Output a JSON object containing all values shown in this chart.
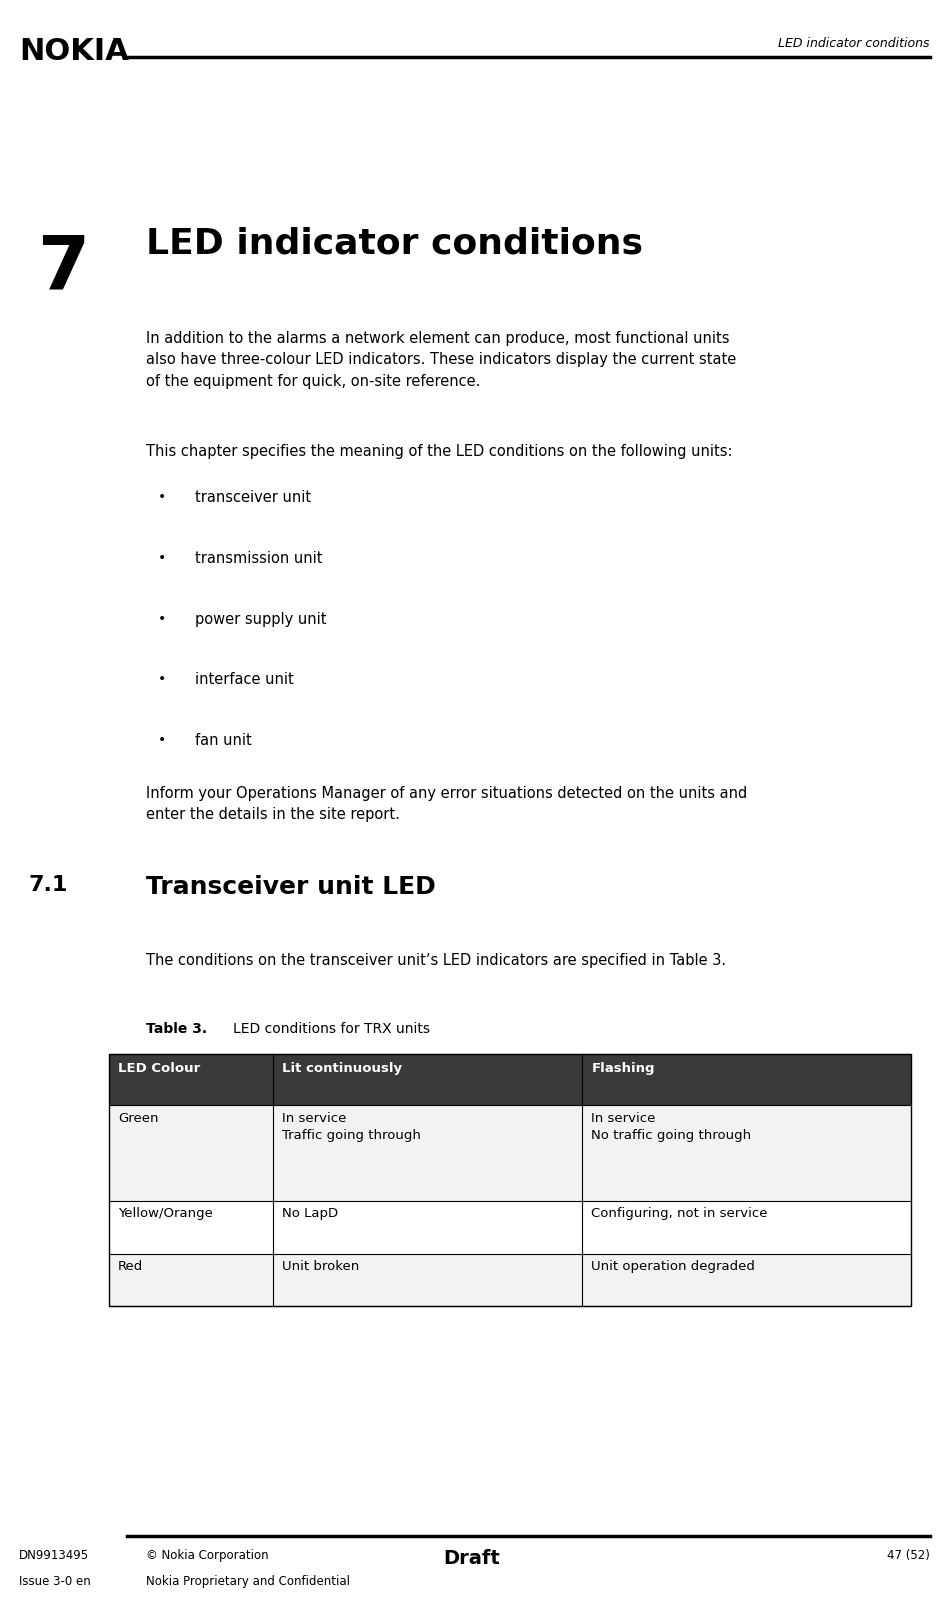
{
  "bg_color": "#ffffff",
  "nokia_logo": "NOKIA",
  "header_right_text": "LED indicator conditions",
  "chapter_number": "7",
  "chapter_title": "LED indicator conditions",
  "body_indent": 0.155,
  "para1": "In addition to the alarms a network element can produce, most functional units\nalso have three-colour LED indicators. These indicators display the current state\nof the equipment for quick, on-site reference.",
  "para2": "This chapter specifies the meaning of the LED conditions on the following units:",
  "bullets": [
    "transceiver unit",
    "transmission unit",
    "power supply unit",
    "interface unit",
    "fan unit"
  ],
  "para3": "Inform your Operations Manager of any error situations detected on the units and\nenter the details in the site report.",
  "section_num": "7.1",
  "section_title": "Transceiver unit LED",
  "section_para": "The conditions on the transceiver unit’s LED indicators are specified in Table 3.",
  "table_label": "Table 3.",
  "table_title": "LED conditions for TRX units",
  "table_headers": [
    "LED Colour",
    "Lit continuously",
    "Flashing"
  ],
  "table_rows": [
    [
      "Green",
      "In service\nTraffic going through",
      "In service\nNo traffic going through"
    ],
    [
      "Yellow/Orange",
      "No LapD",
      "Configuring, not in service"
    ],
    [
      "Red",
      "Unit broken",
      "Unit operation degraded"
    ]
  ],
  "footer_left1": "DN9913495",
  "footer_left2": "Issue 3-0 en",
  "footer_center1": "© Nokia Corporation",
  "footer_center2": "Nokia Proprietary and Confidential",
  "footer_draft": "Draft",
  "footer_right": "47 (52)"
}
